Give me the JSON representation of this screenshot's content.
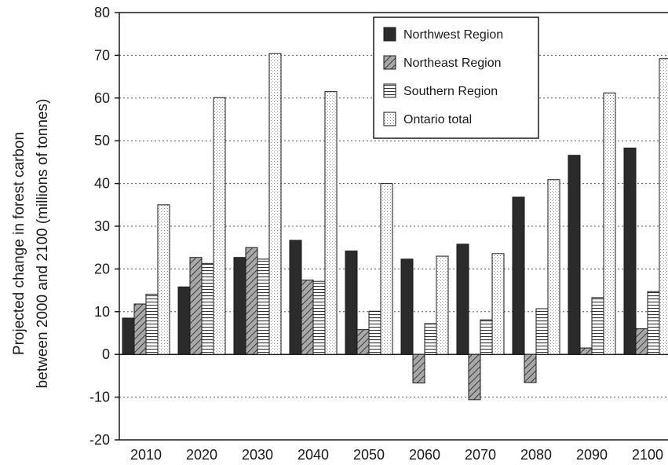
{
  "chart_data": {
    "type": "bar",
    "ylabel_line1": "Projected change in forest carbon",
    "ylabel_line2": "between 2000 and 2100 (millions of tonnes)",
    "categories": [
      "2010",
      "2020",
      "2030",
      "2040",
      "2050",
      "2060",
      "2070",
      "2080",
      "2090",
      "2100"
    ],
    "ylim": [
      -20,
      80
    ],
    "yticks": [
      -20,
      -10,
      0,
      10,
      20,
      30,
      40,
      50,
      60,
      70,
      80
    ],
    "grid": true,
    "legend_position": "top-right",
    "series": [
      {
        "name": "Northwest Region",
        "pattern": "solid",
        "color": "#2b2b2b",
        "values": [
          8.5,
          15.8,
          22.7,
          26.7,
          24.2,
          22.3,
          25.8,
          36.8,
          46.6,
          48.3
        ]
      },
      {
        "name": "Northeast Region",
        "pattern": "diagonal",
        "color": "#9a9a9a",
        "values": [
          11.8,
          22.7,
          25.0,
          17.4,
          5.8,
          -6.7,
          -10.6,
          -6.6,
          1.5,
          6.0
        ]
      },
      {
        "name": "Southern Region",
        "pattern": "horizontal",
        "color": "#ffffff",
        "values": [
          14.1,
          21.3,
          22.3,
          17.1,
          10.1,
          7.2,
          8.1,
          10.7,
          13.3,
          14.7
        ]
      },
      {
        "name": "Ontario total",
        "pattern": "dotted",
        "color": "#f4f4f4",
        "values": [
          35.0,
          60.1,
          70.4,
          61.5,
          40.0,
          23.0,
          23.6,
          40.9,
          61.2,
          69.2
        ]
      }
    ]
  }
}
